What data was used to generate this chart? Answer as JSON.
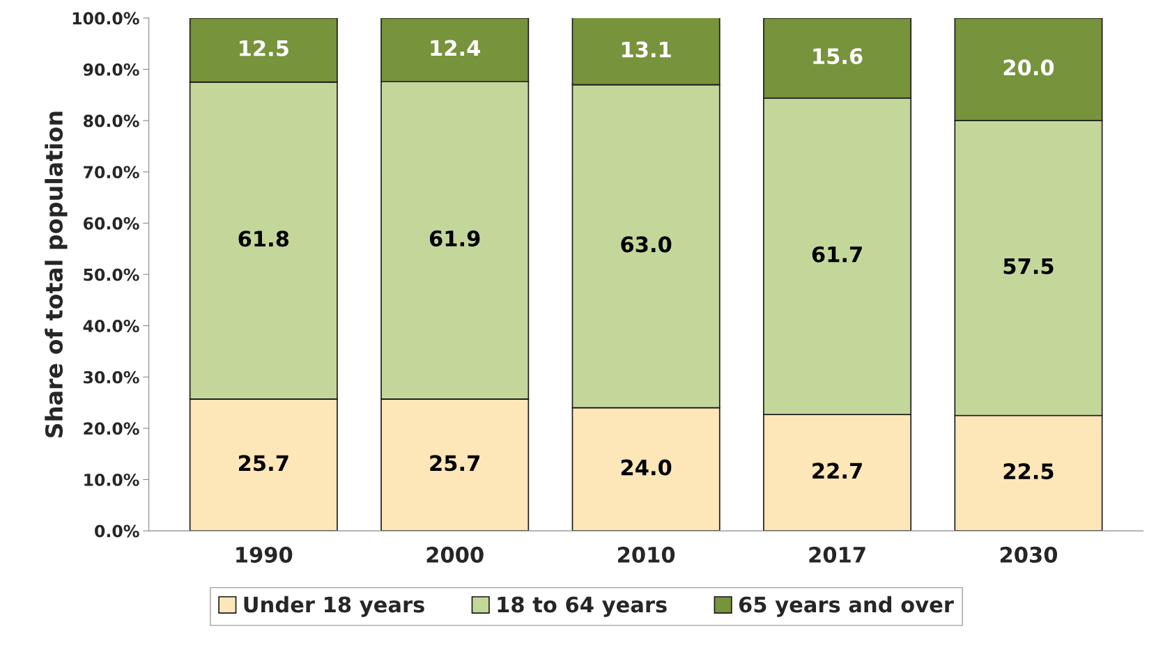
{
  "chart_data": {
    "type": "bar",
    "stacked": true,
    "ylabel": "Share of total population",
    "categories": [
      "1990",
      "2000",
      "2010",
      "2017",
      "2030"
    ],
    "series": [
      {
        "name": "Under 18 years",
        "color": "#fde6b8",
        "values": [
          25.7,
          25.7,
          24.0,
          22.7,
          22.5
        ],
        "value_labels": [
          "25.7",
          "25.7",
          "24.0",
          "22.7",
          "22.5"
        ]
      },
      {
        "name": "18 to 64 years",
        "color": "#c4d79b",
        "values": [
          61.8,
          61.9,
          63.0,
          61.7,
          57.5
        ],
        "value_labels": [
          "61.8",
          "61.9",
          "63.0",
          "61.7",
          "57.5"
        ]
      },
      {
        "name": "65 years and over",
        "color": "#77933c",
        "values": [
          12.5,
          12.4,
          13.1,
          15.6,
          20.0
        ],
        "value_labels": [
          "12.5",
          "12.4",
          "13.1",
          "15.6",
          "20.0"
        ]
      }
    ],
    "ylim": [
      0,
      100
    ],
    "yticks": [
      {
        "value": 0,
        "label": "0.0%"
      },
      {
        "value": 10,
        "label": "10.0%"
      },
      {
        "value": 20,
        "label": "20.0%"
      },
      {
        "value": 30,
        "label": "30.0%"
      },
      {
        "value": 40,
        "label": "40.0%"
      },
      {
        "value": 50,
        "label": "50.0%"
      },
      {
        "value": 60,
        "label": "60.0%"
      },
      {
        "value": 70,
        "label": "70.0%"
      },
      {
        "value": 80,
        "label": "80.0%"
      },
      {
        "value": 90,
        "label": "90.0%"
      },
      {
        "value": 100,
        "label": "100.0%"
      }
    ],
    "legend": "bottom",
    "grid": false
  }
}
